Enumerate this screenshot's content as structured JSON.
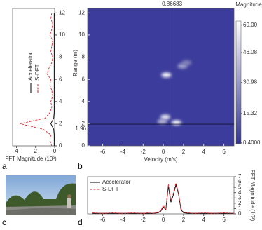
{
  "chart_data": [
    {
      "type": "line",
      "panel_label": "a",
      "orientation": "vertical",
      "x": [
        0,
        0.5,
        1,
        1.5,
        2,
        2.5,
        3,
        3.5,
        4,
        4.5,
        5,
        5.5,
        6,
        6.5,
        7,
        7.5,
        8,
        8.5,
        9,
        9.5,
        10,
        10.5,
        11,
        11.5,
        12
      ],
      "xlim": [
        0,
        12.4
      ],
      "xticks": [
        0,
        2,
        4,
        6,
        8,
        10,
        12
      ],
      "ylim": [
        0,
        4.4
      ],
      "yticks": [
        0,
        2,
        4
      ],
      "y_label": "FFT Magnitude (10³)",
      "legend": "upper left",
      "series": [
        {
          "name": "Accelerator",
          "color": "#000000",
          "values": [
            0.05,
            0.05,
            0.05,
            0.1,
            0.4,
            0.1,
            0.05,
            0.05,
            0.05,
            0.05,
            0.05,
            0.05,
            0.05,
            0.05,
            0.05,
            0.05,
            0.05,
            0.05,
            0.05,
            0.05,
            0.05,
            0.05,
            0.05,
            0.05,
            0.05
          ]
        },
        {
          "name": "S-DFT",
          "color": "#e0262b",
          "dash": true,
          "values": [
            0.3,
            0.5,
            0.4,
            1.2,
            3.6,
            1.0,
            0.5,
            0.3,
            0.4,
            0.2,
            0.3,
            0.5,
            0.4,
            0.8,
            0.6,
            0.3,
            0.2,
            0.4,
            0.3,
            0.2,
            0.5,
            0.3,
            0.2,
            0.4,
            0.3
          ]
        }
      ]
    },
    {
      "type": "heatmap",
      "panel_label": "b",
      "x_label": "Velocity (m/s)",
      "y_label": "Range (m)",
      "xlim": [
        -7.5,
        7
      ],
      "xticks": [
        -6,
        -4,
        -2,
        0,
        2,
        4,
        6
      ],
      "ylim": [
        0,
        12.4
      ],
      "yticks": [
        0,
        2,
        4,
        6,
        8,
        10,
        12
      ],
      "background": "#3c3c9c",
      "points": {
        "x": [
          0.3,
          1.9,
          0.2,
          1.3,
          -0.1,
          2.3
        ],
        "y": [
          6.4,
          7.2,
          2.6,
          2.1,
          2.2,
          7.5
        ],
        "values": [
          60,
          35,
          55,
          60,
          40,
          25
        ]
      },
      "cursor": {
        "x": 0.86683,
        "y": 1.96
      },
      "colorbar": {
        "title": "Magnitude",
        "lim": [
          0,
          62
        ],
        "colors": [
          "#34348f",
          "#ffffff"
        ],
        "ticks": [
          {
            "value": 0.4,
            "label": "0.4000"
          },
          15.32,
          30.98,
          46.08,
          {
            "value": 60,
            "label": "60.00"
          }
        ]
      }
    },
    {
      "type": "line",
      "panel_label": "d",
      "x": [
        -7,
        -6,
        -5,
        -4,
        -3,
        -2,
        -1.5,
        -1,
        -0.5,
        -0.25,
        0,
        0.25,
        0.5,
        0.75,
        1,
        1.25,
        1.5,
        1.75,
        2,
        2.5,
        3,
        4,
        5,
        6,
        7
      ],
      "xlim": [
        -7.5,
        7
      ],
      "xticks": [
        -6,
        -4,
        -2,
        0,
        2,
        4,
        6
      ],
      "ylim": [
        0,
        7
      ],
      "yticks": [
        0,
        1,
        2,
        3,
        4,
        5,
        6,
        7
      ],
      "y_label": "FFT Magnitude (10³)",
      "legend": "upper left",
      "series": [
        {
          "name": "Accelerator",
          "color": "#000000",
          "values": [
            0.1,
            0.1,
            0.1,
            0.1,
            0.1,
            0.1,
            0.1,
            0.1,
            0.2,
            0.5,
            1.3,
            0.8,
            5.2,
            2.2,
            3.6,
            5.5,
            3.8,
            0.8,
            0.2,
            0.1,
            0.1,
            0.1,
            0.1,
            0.1,
            0.1
          ]
        },
        {
          "name": "S-DFT",
          "color": "#e0262b",
          "dash": true,
          "values": [
            0.2,
            0.1,
            0.2,
            0.1,
            0.2,
            0.1,
            0.2,
            0.1,
            0.3,
            0.6,
            1.6,
            0.9,
            5.6,
            2.6,
            4.0,
            5.8,
            4.0,
            1.0,
            0.3,
            0.2,
            0.1,
            0.2,
            0.1,
            0.2,
            0.1
          ]
        }
      ]
    }
  ],
  "photo": {
    "panel_label": "c"
  }
}
